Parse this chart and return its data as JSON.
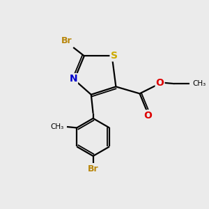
{
  "bg_color": "#ebebeb",
  "atom_colors": {
    "Br": "#b8860b",
    "S": "#ccaa00",
    "N": "#0000cc",
    "O": "#dd0000",
    "C": "#000000"
  },
  "bond_color": "#000000",
  "lw": 1.6,
  "lw_inner": 1.3
}
